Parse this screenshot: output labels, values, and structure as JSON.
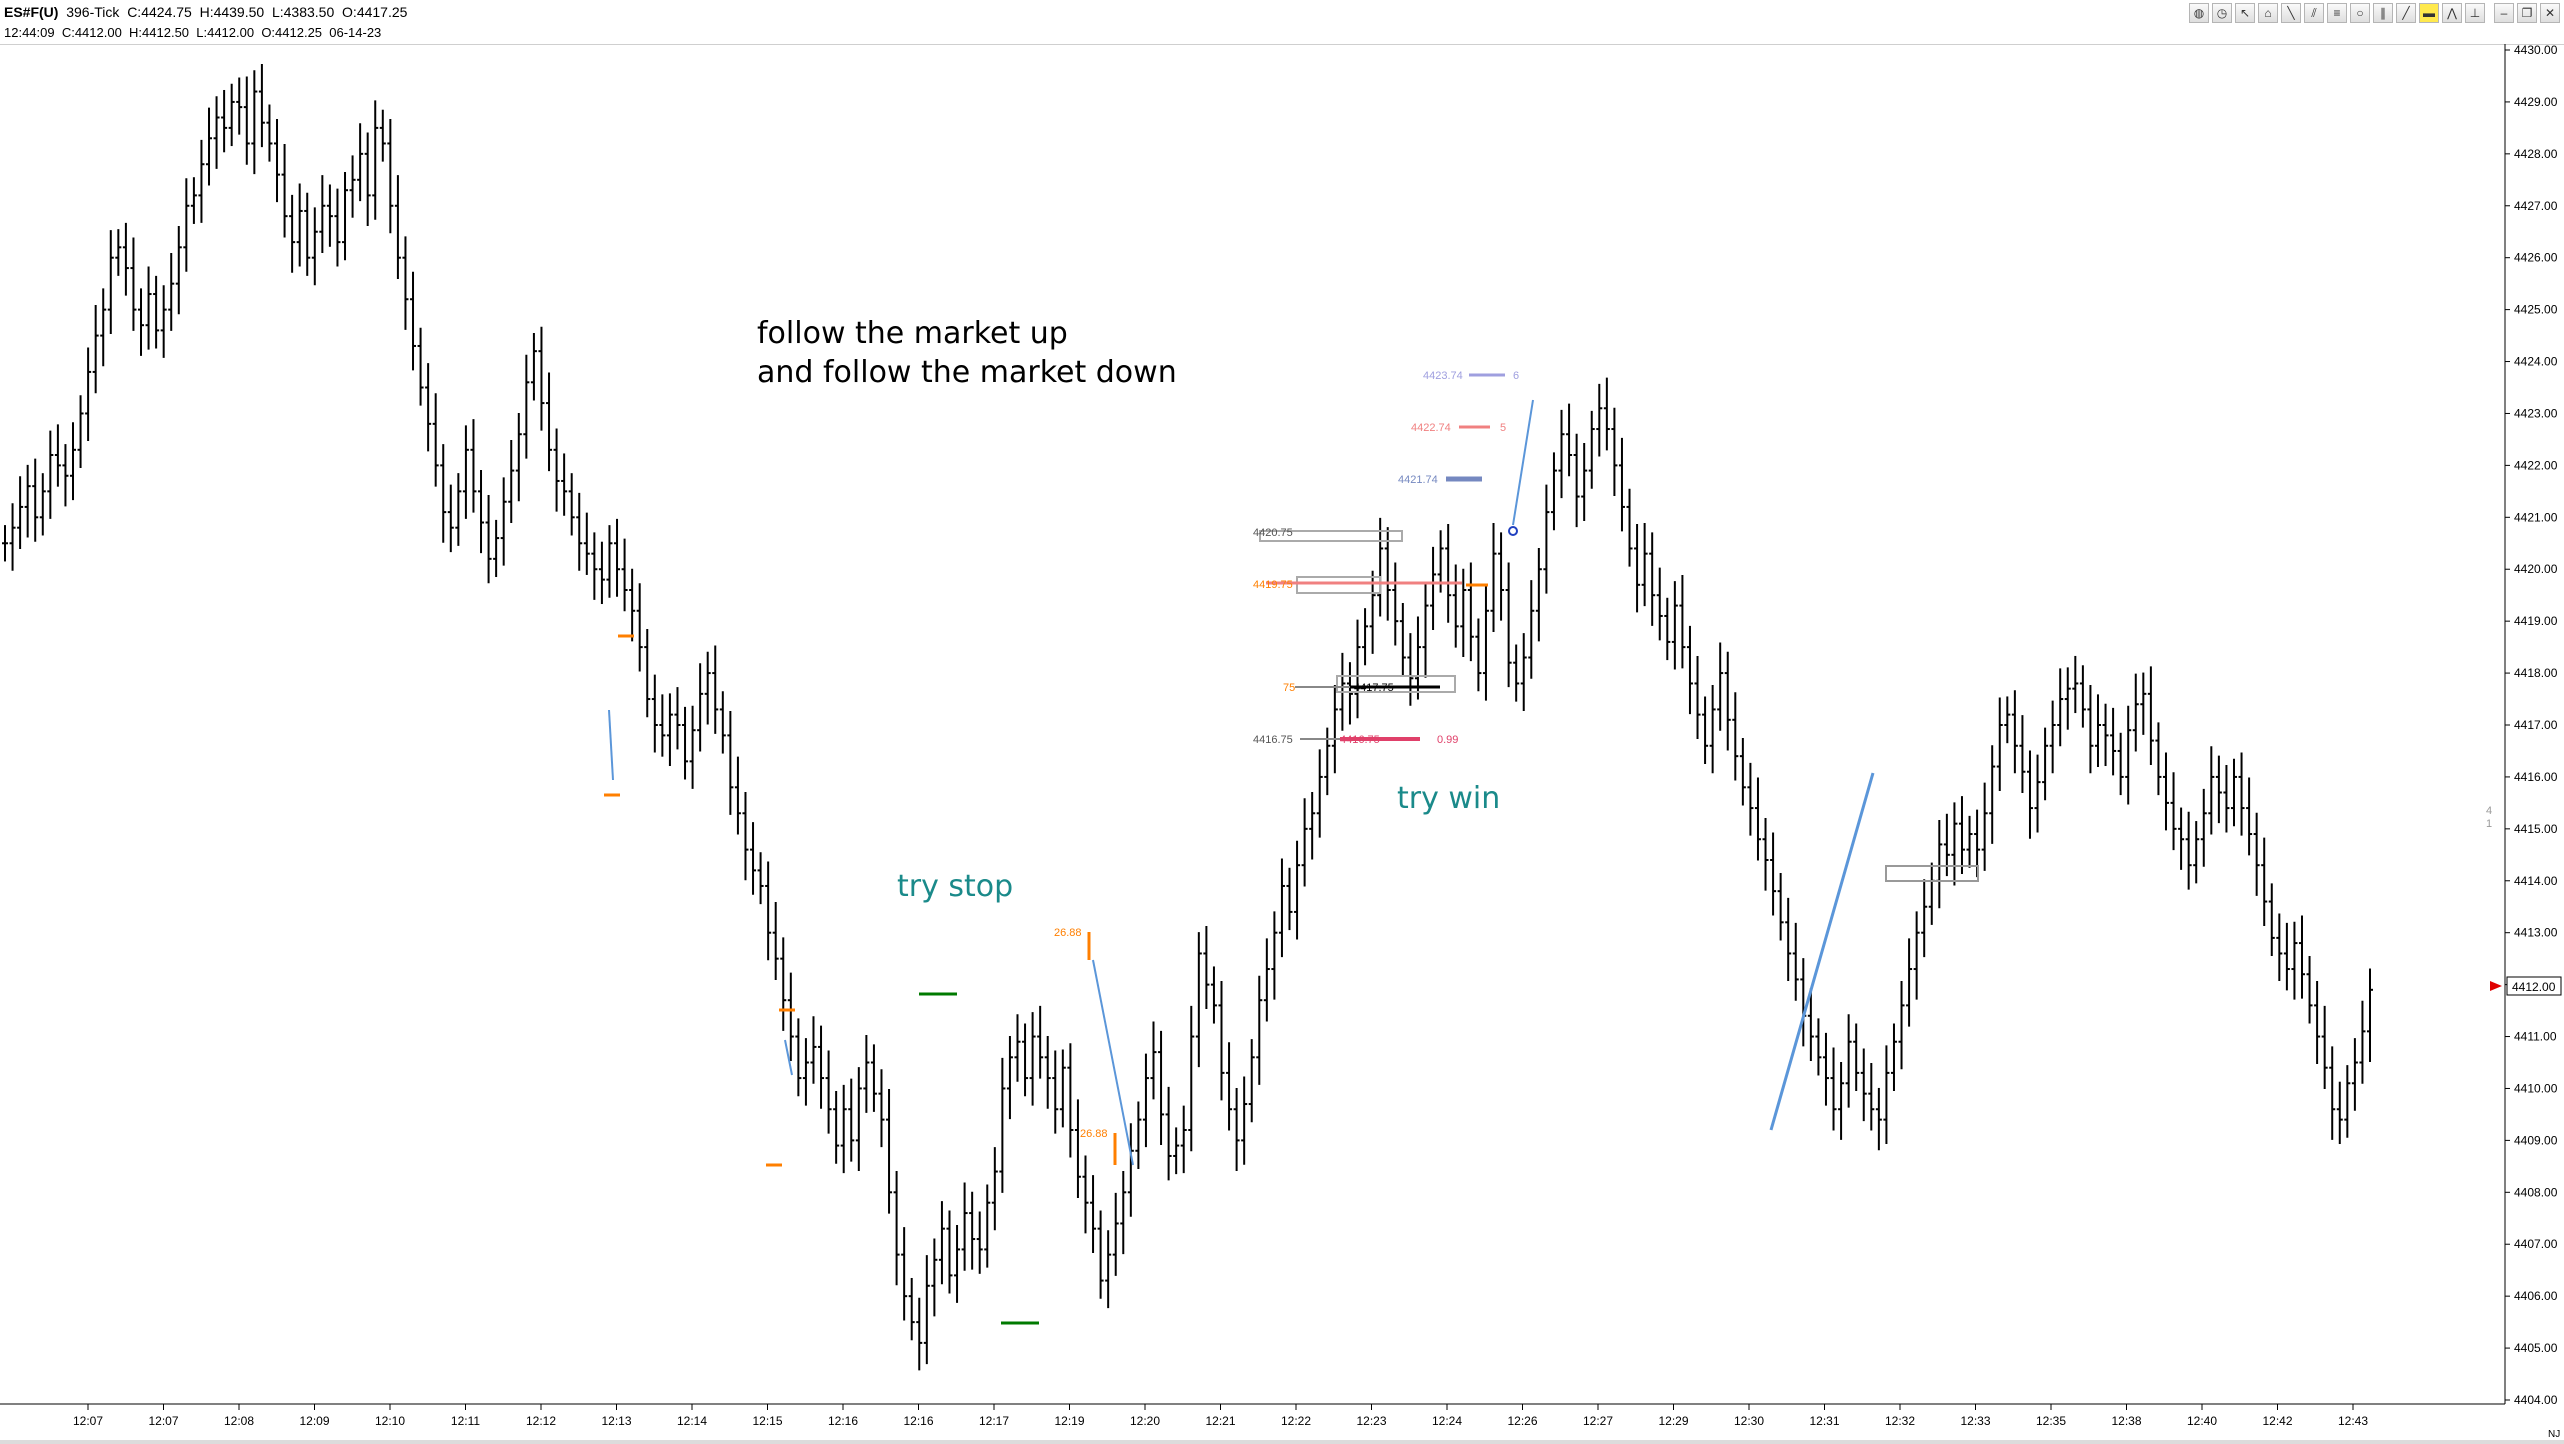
{
  "header": {
    "symbol": "ES#F(U)",
    "interval": "396-Tick",
    "close": "C:4424.75",
    "high": "H:4439.50",
    "low": "L:4383.50",
    "open": "O:4417.25",
    "bar_info": "12:44:09  C:4412.00  H:4412.50  L:4412.00  O:4412.25  06-14-23"
  },
  "toolbar": {
    "icons": [
      "globe-icon",
      "clock-icon",
      "cursor-icon",
      "tag-icon",
      "line-icon",
      "parallel-lines-icon",
      "fib-icon",
      "circle-icon",
      "channel-icon",
      "ray-icon",
      "highlight-icon",
      "zigzag-icon",
      "pin-icon",
      "minimize-icon",
      "restore-icon",
      "close-icon"
    ]
  },
  "annotations": {
    "follow_line1": "follow the market up",
    "follow_line2": "and follow the market down",
    "try_stop": "try stop",
    "try_win": "try win"
  },
  "order_labels": {
    "l4423": "4423.74",
    "n6": "6",
    "l4422": "4422.74",
    "n5": "5",
    "l4421": "4421.74",
    "l4420": "4420.75",
    "l4419": "4419.75",
    "l4417_left": "75",
    "l4417_mid": "4417.75",
    "l4416_left": "4416.75",
    "l4416_mid": "4416.75",
    "val099": "0.99",
    "val2688a": "26.88",
    "val2688b": "26.88",
    "side4": "4",
    "side1": "1"
  },
  "price_marker": "4412.00",
  "corner_label": "NJ",
  "chart_data": {
    "type": "bar",
    "ohlc_style": "tick-bar",
    "ylim": [
      4404.0,
      4430.0
    ],
    "y_ticks": [
      "4430.00",
      "4429.00",
      "4428.00",
      "4427.00",
      "4426.00",
      "4425.00",
      "4424.00",
      "4423.00",
      "4422.00",
      "4421.00",
      "4420.00",
      "4419.00",
      "4418.00",
      "4417.00",
      "4416.00",
      "4415.00",
      "4414.00",
      "4413.00",
      "4412.00",
      "4411.00",
      "4410.00",
      "4409.00",
      "4408.00",
      "4407.00",
      "4406.00",
      "4405.00",
      "4404.00"
    ],
    "x_ticks": [
      "12:07",
      "12:07",
      "12:08",
      "12:09",
      "12:10",
      "12:11",
      "12:12",
      "12:13",
      "12:14",
      "12:15",
      "12:16",
      "12:16",
      "12:17",
      "12:19",
      "12:20",
      "12:21",
      "12:22",
      "12:23",
      "12:24",
      "12:26",
      "12:27",
      "12:29",
      "12:30",
      "12:31",
      "12:32",
      "12:33",
      "12:35",
      "12:38",
      "12:40",
      "12:42",
      "12:43"
    ],
    "closes": [
      4420.5,
      4420.8,
      4421.2,
      4421.6,
      4421.0,
      4421.5,
      4422.2,
      4422.0,
      4421.8,
      4422.3,
      4423.0,
      4423.8,
      4424.5,
      4425.0,
      4426.0,
      4426.2,
      4425.8,
      4425.0,
      4424.7,
      4425.3,
      4424.6,
      4425.0,
      4425.5,
      4426.2,
      4427.0,
      4427.2,
      4427.8,
      4428.3,
      4428.7,
      4428.5,
      4429.0,
      4428.9,
      4428.2,
      4429.2,
      4428.6,
      4428.2,
      4427.6,
      4426.8,
      4426.3,
      4426.9,
      4426.0,
      4426.5,
      4427.0,
      4426.8,
      4426.3,
      4427.3,
      4427.5,
      4428.0,
      4427.2,
      4428.5,
      4428.2,
      4427.0,
      4426.0,
      4425.2,
      4424.3,
      4423.5,
      4422.8,
      4422.0,
      4421.1,
      4420.8,
      4421.5,
      4422.3,
      4421.5,
      4420.9,
      4420.2,
      4420.6,
      4421.3,
      4421.9,
      4422.6,
      4423.6,
      4424.2,
      4423.2,
      4422.3,
      4421.7,
      4421.5,
      4421.0,
      4420.5,
      4420.3,
      4420.0,
      4419.8,
      4420.5,
      4420.0,
      4419.6,
      4419.2,
      4418.5,
      4417.5,
      4417.0,
      4416.8,
      4417.2,
      4417.0,
      4416.3,
      4416.9,
      4417.6,
      4418.0,
      4417.3,
      4416.8,
      4415.8,
      4415.3,
      4414.6,
      4414.2,
      4413.9,
      4413.0,
      4412.5,
      4411.7,
      4411.0,
      4410.2,
      4410.5,
      4410.8,
      4410.2,
      4409.6,
      4408.9,
      4409.6,
      4409.0,
      4410.0,
      4410.5,
      4409.9,
      4409.4,
      4408.0,
      4406.8,
      4406.0,
      4405.5,
      4405.1,
      4406.2,
      4406.7,
      4407.3,
      4406.4,
      4406.9,
      4407.6,
      4407.1,
      4406.9,
      4407.8,
      4408.4,
      4410.0,
      4410.6,
      4410.9,
      4410.2,
      4411.0,
      4410.6,
      4410.2,
      4409.6,
      4410.4,
      4409.2,
      4408.3,
      4407.8,
      4407.3,
      4406.3,
      4406.8,
      4407.4,
      4408.0,
      4408.8,
      4409.4,
      4410.2,
      4410.7,
      4409.5,
      4408.7,
      4408.9,
      4409.2,
      4411.0,
      4412.6,
      4412.0,
      4411.6,
      4410.3,
      4409.6,
      4409.0,
      4409.7,
      4410.6,
      4411.7,
      4412.3,
      4413.0,
      4413.9,
      4413.4,
      4414.3,
      4415.0,
      4415.3,
      4416.0,
      4416.6,
      4417.3,
      4417.8,
      4417.6,
      4418.5,
      4418.9,
      4419.5,
      4420.4,
      4419.6,
      4419.0,
      4418.3,
      4417.9,
      4418.5,
      4419.3,
      4419.9,
      4420.4,
      4419.5,
      4418.9,
      4419.6,
      4418.7,
      4418.0,
      4419.2,
      4420.3,
      4419.6,
      4418.2,
      4417.8,
      4418.3,
      4419.2,
      4420.0,
      4421.1,
      4421.9,
      4422.6,
      4422.2,
      4421.4,
      4421.9,
      4422.7,
      4423.1,
      4422.7,
      4422.0,
      4421.2,
      4420.4,
      4419.7,
      4420.3,
      4419.5,
      4419.1,
      4418.6,
      4419.3,
      4418.5,
      4417.8,
      4417.2,
      4416.6,
      4417.3,
      4418.0,
      4417.1,
      4416.4,
      4415.8,
      4415.4,
      4414.8,
      4414.4,
      4413.8,
      4413.2,
      4412.6,
      4412.1,
      4411.4,
      4411.0,
      4410.6,
      4410.2,
      4409.6,
      4410.1,
      4410.9,
      4410.3,
      4409.9,
      4409.6,
      4409.4,
      4410.3,
      4410.9,
      4411.6,
      4412.3,
      4413.0,
      4413.5,
      4414.0,
      4414.7,
      4414.5,
      4415.1,
      4414.6,
      4414.9,
      4414.6,
      4415.3,
      4416.2,
      4417.0,
      4417.2,
      4416.6,
      4416.1,
      4415.4,
      4415.9,
      4416.6,
      4417.0,
      4417.5,
      4417.7,
      4417.8,
      4417.3,
      4416.6,
      4417.0,
      4416.8,
      4416.5,
      4416.0,
      4416.9,
      4417.4,
      4417.6,
      4416.7,
      4416.0,
      4415.5,
      4415.0,
      4414.8,
      4414.3,
      4414.8,
      4415.3,
      4416.0,
      4415.7,
      4415.4,
      4416.0,
      4415.4,
      4414.9,
      4414.3,
      4413.6,
      4412.9,
      4412.6,
      4412.3,
      4412.8,
      4412.2,
      4411.6,
      4411.0,
      4410.4,
      4409.6,
      4409.4,
      4410.1,
      4410.5,
      4411.1,
      4411.9
    ]
  }
}
